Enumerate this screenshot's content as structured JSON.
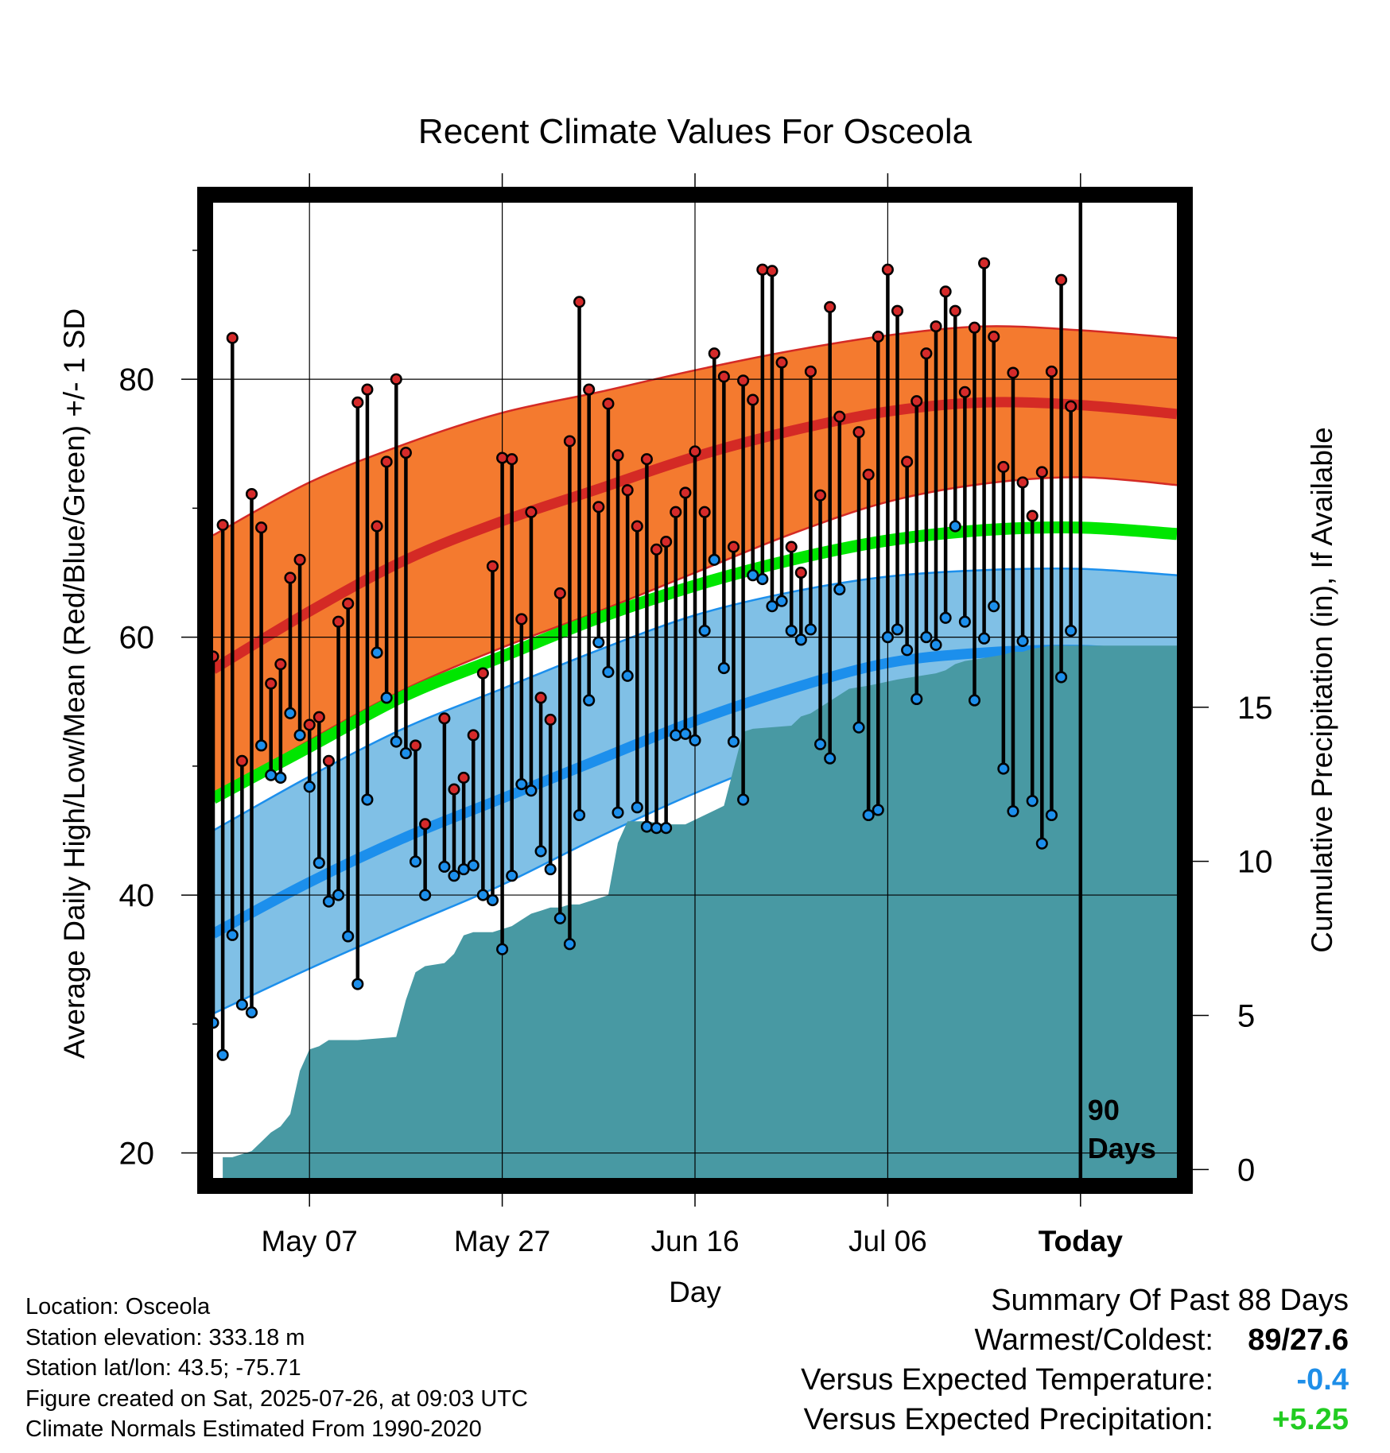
{
  "chart_data": {
    "type": "line",
    "title": "Recent Climate Values For Osceola",
    "xlabel": "Day",
    "ylabel_left": "Average Daily High/Low/Mean (Red/Blue/Green) +/- 1 SD",
    "ylabel_right": "Cumulative Precipitation (in), If Available",
    "x_start": "2025-04-27",
    "x_end": "2025-08-05",
    "today": "2025-07-26",
    "xticks": [
      {
        "date": "2025-05-07",
        "label": "May 07"
      },
      {
        "date": "2025-05-27",
        "label": "May 27"
      },
      {
        "date": "2025-06-16",
        "label": "Jun 16"
      },
      {
        "date": "2025-07-06",
        "label": "Jul 06"
      },
      {
        "date": "2025-07-26",
        "label": "Today"
      }
    ],
    "ylim_left": [
      18,
      94
    ],
    "yticks_left": [
      20,
      40,
      60,
      80
    ],
    "ylim_right": [
      -0.3,
      31.5
    ],
    "yticks_right": [
      0,
      5,
      10,
      15
    ],
    "grid": true,
    "today_marker_label": [
      "90",
      "Days"
    ],
    "normals": {
      "dates": [
        "2025-04-27",
        "2025-05-07",
        "2025-05-17",
        "2025-05-27",
        "2025-06-06",
        "2025-06-16",
        "2025-06-26",
        "2025-07-06",
        "2025-07-16",
        "2025-07-26",
        "2025-08-05"
      ],
      "high_mean": [
        57.5,
        62.0,
        66.0,
        69.0,
        71.5,
        74.0,
        76.0,
        77.5,
        78.2,
        78.0,
        77.3
      ],
      "high_sd_top": [
        67.9,
        72.0,
        75.0,
        77.4,
        79.0,
        80.7,
        82.2,
        83.4,
        84.1,
        83.8,
        83.2
      ],
      "high_sd_bot": [
        47.5,
        52.0,
        56.0,
        59.2,
        62.0,
        65.0,
        68.0,
        70.5,
        71.9,
        72.4,
        71.8
      ],
      "mean": [
        47.5,
        51.5,
        55.5,
        58.5,
        61.5,
        64.0,
        66.0,
        67.5,
        68.3,
        68.5,
        68.0
      ],
      "low_mean": [
        37.0,
        41.0,
        44.5,
        47.5,
        50.5,
        53.5,
        56.0,
        58.0,
        58.8,
        59.0,
        58.5
      ],
      "low_sd_top": [
        45.0,
        49.2,
        53.0,
        56.0,
        59.0,
        61.7,
        63.5,
        64.7,
        65.2,
        65.3,
        64.8
      ],
      "low_sd_bot": [
        30.8,
        34.3,
        37.6,
        40.8,
        44.5,
        47.9,
        50.8,
        52.8,
        53.4,
        53.6,
        53.0
      ]
    },
    "observations": [
      {
        "date": "2025-04-27",
        "high": 58.5,
        "low": 30.1
      },
      {
        "date": "2025-04-28",
        "high": 68.7,
        "low": 27.6
      },
      {
        "date": "2025-04-29",
        "high": 83.2,
        "low": 36.9
      },
      {
        "date": "2025-04-30",
        "high": 50.4,
        "low": 31.5
      },
      {
        "date": "2025-05-01",
        "high": 71.1,
        "low": 30.9
      },
      {
        "date": "2025-05-02",
        "high": 68.5,
        "low": 51.6
      },
      {
        "date": "2025-05-03",
        "high": 56.4,
        "low": 49.3
      },
      {
        "date": "2025-05-04",
        "high": 57.9,
        "low": 49.1
      },
      {
        "date": "2025-05-05",
        "high": 64.6,
        "low": 54.1
      },
      {
        "date": "2025-05-06",
        "high": 66.0,
        "low": 52.4
      },
      {
        "date": "2025-05-07",
        "high": 53.2,
        "low": 48.4
      },
      {
        "date": "2025-05-08",
        "high": 53.8,
        "low": 42.5
      },
      {
        "date": "2025-05-09",
        "high": 50.4,
        "low": 39.5
      },
      {
        "date": "2025-05-10",
        "high": 61.2,
        "low": 40.0
      },
      {
        "date": "2025-05-11",
        "high": 62.6,
        "low": 36.8
      },
      {
        "date": "2025-05-12",
        "high": 78.2,
        "low": 33.1
      },
      {
        "date": "2025-05-13",
        "high": 79.2,
        "low": 47.4
      },
      {
        "date": "2025-05-14",
        "high": 68.6,
        "low": 58.8
      },
      {
        "date": "2025-05-15",
        "high": 73.6,
        "low": 55.3
      },
      {
        "date": "2025-05-16",
        "high": 80.0,
        "low": 51.9
      },
      {
        "date": "2025-05-17",
        "high": 74.3,
        "low": 51.0
      },
      {
        "date": "2025-05-18",
        "high": 51.6,
        "low": 42.6
      },
      {
        "date": "2025-05-19",
        "high": 45.5,
        "low": 40.0
      },
      {
        "date": "2025-05-21",
        "high": 53.7,
        "low": 42.2
      },
      {
        "date": "2025-05-22",
        "high": 48.2,
        "low": 41.5
      },
      {
        "date": "2025-05-23",
        "high": 49.1,
        "low": 42.0
      },
      {
        "date": "2025-05-24",
        "high": 52.4,
        "low": 42.3
      },
      {
        "date": "2025-05-25",
        "high": 57.2,
        "low": 40.0
      },
      {
        "date": "2025-05-26",
        "high": 65.5,
        "low": 39.6
      },
      {
        "date": "2025-05-27",
        "high": 73.9,
        "low": 35.8
      },
      {
        "date": "2025-05-28",
        "high": 73.8,
        "low": 41.5
      },
      {
        "date": "2025-05-29",
        "high": 61.4,
        "low": 48.6
      },
      {
        "date": "2025-05-30",
        "high": 69.7,
        "low": 48.1
      },
      {
        "date": "2025-05-31",
        "high": 55.3,
        "low": 43.4
      },
      {
        "date": "2025-06-01",
        "high": 53.6,
        "low": 42.0
      },
      {
        "date": "2025-06-02",
        "high": 63.4,
        "low": 38.2
      },
      {
        "date": "2025-06-03",
        "high": 75.2,
        "low": 36.2
      },
      {
        "date": "2025-06-04",
        "high": 86.0,
        "low": 46.2
      },
      {
        "date": "2025-06-05",
        "high": 79.2,
        "low": 55.1
      },
      {
        "date": "2025-06-06",
        "high": 70.1,
        "low": 59.6
      },
      {
        "date": "2025-06-07",
        "high": 78.1,
        "low": 57.3
      },
      {
        "date": "2025-06-08",
        "high": 74.1,
        "low": 46.4
      },
      {
        "date": "2025-06-09",
        "high": 71.4,
        "low": 57.0
      },
      {
        "date": "2025-06-10",
        "high": 68.6,
        "low": 46.8
      },
      {
        "date": "2025-06-11",
        "high": 73.8,
        "low": 45.3
      },
      {
        "date": "2025-06-12",
        "high": 66.8,
        "low": 45.2
      },
      {
        "date": "2025-06-13",
        "high": 67.4,
        "low": 45.2
      },
      {
        "date": "2025-06-14",
        "high": 69.7,
        "low": 52.4
      },
      {
        "date": "2025-06-15",
        "high": 71.2,
        "low": 52.5
      },
      {
        "date": "2025-06-16",
        "high": 74.4,
        "low": 52.0
      },
      {
        "date": "2025-06-17",
        "high": 69.7,
        "low": 60.5
      },
      {
        "date": "2025-06-18",
        "high": 82.0,
        "low": 66.0
      },
      {
        "date": "2025-06-19",
        "high": 80.2,
        "low": 57.6
      },
      {
        "date": "2025-06-20",
        "high": 67.0,
        "low": 51.9
      },
      {
        "date": "2025-06-21",
        "high": 79.9,
        "low": 47.4
      },
      {
        "date": "2025-06-22",
        "high": 78.4,
        "low": 64.8
      },
      {
        "date": "2025-06-23",
        "high": 88.5,
        "low": 64.5
      },
      {
        "date": "2025-06-24",
        "high": 88.4,
        "low": 62.4
      },
      {
        "date": "2025-06-25",
        "high": 81.3,
        "low": 62.8
      },
      {
        "date": "2025-06-26",
        "high": 67.0,
        "low": 60.5
      },
      {
        "date": "2025-06-27",
        "high": 65.0,
        "low": 59.8
      },
      {
        "date": "2025-06-28",
        "high": 80.6,
        "low": 60.6
      },
      {
        "date": "2025-06-29",
        "high": 71.0,
        "low": 51.7
      },
      {
        "date": "2025-06-30",
        "high": 85.6,
        "low": 50.6
      },
      {
        "date": "2025-07-01",
        "high": 77.1,
        "low": 63.7
      },
      {
        "date": "2025-07-03",
        "high": 75.9,
        "low": 53.0
      },
      {
        "date": "2025-07-04",
        "high": 72.6,
        "low": 46.2
      },
      {
        "date": "2025-07-05",
        "high": 83.3,
        "low": 46.6
      },
      {
        "date": "2025-07-06",
        "high": 88.5,
        "low": 60.0
      },
      {
        "date": "2025-07-07",
        "high": 85.3,
        "low": 60.6
      },
      {
        "date": "2025-07-08",
        "high": 73.6,
        "low": 59.0
      },
      {
        "date": "2025-07-09",
        "high": 78.3,
        "low": 55.2
      },
      {
        "date": "2025-07-10",
        "high": 82.0,
        "low": 60.0
      },
      {
        "date": "2025-07-11",
        "high": 84.1,
        "low": 59.4
      },
      {
        "date": "2025-07-12",
        "high": 86.8,
        "low": 61.5
      },
      {
        "date": "2025-07-13",
        "high": 85.3,
        "low": 68.6
      },
      {
        "date": "2025-07-14",
        "high": 79.0,
        "low": 61.2
      },
      {
        "date": "2025-07-15",
        "high": 84.0,
        "low": 55.1
      },
      {
        "date": "2025-07-16",
        "high": 89.0,
        "low": 59.9
      },
      {
        "date": "2025-07-17",
        "high": 83.3,
        "low": 62.4
      },
      {
        "date": "2025-07-18",
        "high": 73.2,
        "low": 49.8
      },
      {
        "date": "2025-07-19",
        "high": 80.5,
        "low": 46.5
      },
      {
        "date": "2025-07-20",
        "high": 72.0,
        "low": 59.7
      },
      {
        "date": "2025-07-21",
        "high": 69.4,
        "low": 47.3
      },
      {
        "date": "2025-07-22",
        "high": 72.8,
        "low": 44.0
      },
      {
        "date": "2025-07-23",
        "high": 80.6,
        "low": 46.2
      },
      {
        "date": "2025-07-24",
        "high": 87.7,
        "low": 56.9
      },
      {
        "date": "2025-07-25",
        "high": 77.9,
        "low": 60.5
      }
    ],
    "precipitation": {
      "dates": [
        "2025-04-28",
        "2025-04-29",
        "2025-04-30",
        "2025-05-01",
        "2025-05-02",
        "2025-05-03",
        "2025-05-04",
        "2025-05-05",
        "2025-05-06",
        "2025-05-07",
        "2025-05-08",
        "2025-05-09",
        "2025-05-12",
        "2025-05-16",
        "2025-05-17",
        "2025-05-18",
        "2025-05-19",
        "2025-05-21",
        "2025-05-22",
        "2025-05-23",
        "2025-05-24",
        "2025-05-26",
        "2025-05-27",
        "2025-05-28",
        "2025-05-29",
        "2025-05-30",
        "2025-05-31",
        "2025-06-01",
        "2025-06-02",
        "2025-06-03",
        "2025-06-04",
        "2025-06-05",
        "2025-06-06",
        "2025-06-07",
        "2025-06-08",
        "2025-06-09",
        "2025-06-10",
        "2025-06-11",
        "2025-06-13",
        "2025-06-15",
        "2025-06-17",
        "2025-06-19",
        "2025-06-21",
        "2025-06-22",
        "2025-06-26",
        "2025-06-27",
        "2025-06-28",
        "2025-06-30",
        "2025-07-02",
        "2025-07-04",
        "2025-07-07",
        "2025-07-09",
        "2025-07-11",
        "2025-07-12",
        "2025-07-13",
        "2025-07-14",
        "2025-07-16",
        "2025-07-18",
        "2025-07-19",
        "2025-07-20",
        "2025-07-21",
        "2025-07-23",
        "2025-07-25",
        "2025-08-05"
      ],
      "values": [
        0.4,
        0.4,
        0.5,
        0.6,
        0.9,
        1.2,
        1.4,
        1.8,
        3.2,
        3.9,
        4.0,
        4.2,
        4.2,
        4.3,
        5.5,
        6.4,
        6.6,
        6.7,
        7.0,
        7.6,
        7.7,
        7.7,
        7.8,
        7.9,
        8.1,
        8.3,
        8.4,
        8.5,
        8.5,
        8.6,
        8.6,
        8.7,
        8.8,
        8.9,
        10.6,
        11.3,
        11.3,
        11.3,
        11.2,
        11.2,
        11.5,
        11.8,
        14.2,
        14.3,
        14.4,
        14.7,
        14.8,
        15.2,
        15.6,
        15.7,
        15.9,
        16.0,
        16.1,
        16.2,
        16.4,
        16.5,
        16.6,
        16.7,
        16.8,
        16.8,
        16.9,
        17.0,
        17.0,
        17.0
      ]
    },
    "colors": {
      "high_band": "#f47a2f",
      "high_mean": "#d42a25",
      "mean": "#00e600",
      "low_band": "#80c0e6",
      "low_mean": "#1c8fec",
      "precip": "#4899a3",
      "high_dot": "#d52a2a",
      "low_dot": "#1c8fec",
      "temp_delta": "#1e8ee8",
      "precip_delta": "#22cc22"
    }
  },
  "footer": {
    "location": "Location: Osceola",
    "elevation": "Station elevation: 333.18 m",
    "latlon": "Station lat/lon: 43.5; -75.71",
    "created": "Figure created on Sat, 2025-07-26, at 09:03 UTC",
    "normals": "Climate Normals Estimated From 1990-2020"
  },
  "summary": {
    "heading": "Summary Of Past 88 Days",
    "warmest_coldest_label": "Warmest/Coldest:",
    "warmest": "89",
    "coldest": "27.6",
    "temp_label": "Versus Expected Temperature:",
    "temp_value": "-0.4",
    "precip_label": "Versus Expected Precipitation:",
    "precip_value": "+5.25"
  }
}
